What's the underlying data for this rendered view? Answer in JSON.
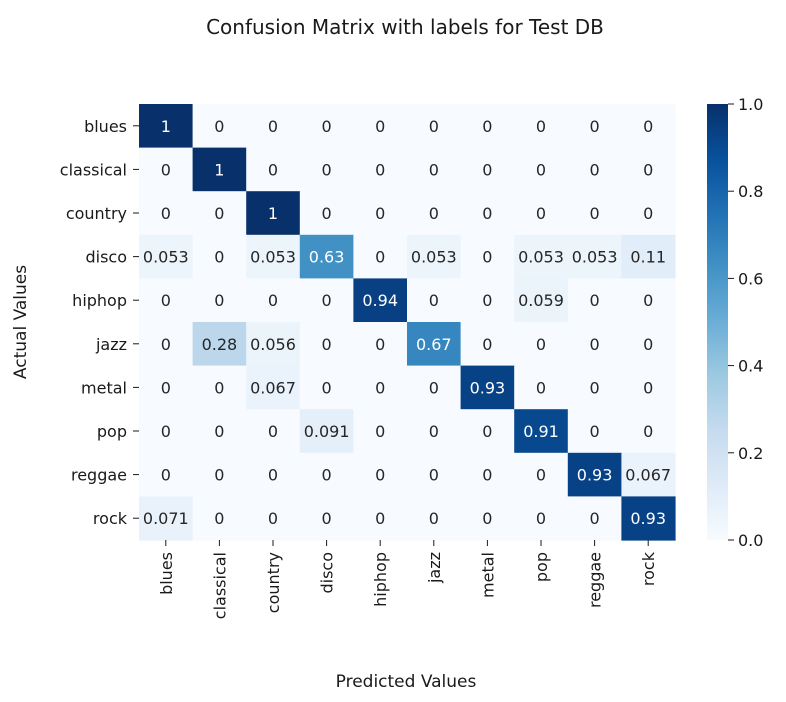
{
  "chart_data": {
    "type": "heatmap",
    "title": "Confusion Matrix with labels for Test DB",
    "xlabel": "Predicted Values",
    "ylabel": "Actual Values",
    "x_categories": [
      "blues",
      "classical",
      "country",
      "disco",
      "hiphop",
      "jazz",
      "metal",
      "pop",
      "reggae",
      "rock"
    ],
    "y_categories": [
      "blues",
      "classical",
      "country",
      "disco",
      "hiphop",
      "jazz",
      "metal",
      "pop",
      "reggae",
      "rock"
    ],
    "values": [
      [
        1,
        0,
        0,
        0,
        0,
        0,
        0,
        0,
        0,
        0
      ],
      [
        0,
        1,
        0,
        0,
        0,
        0,
        0,
        0,
        0,
        0
      ],
      [
        0,
        0,
        1,
        0,
        0,
        0,
        0,
        0,
        0,
        0
      ],
      [
        0.053,
        0,
        0.053,
        0.63,
        0,
        0.053,
        0,
        0.053,
        0.053,
        0.11
      ],
      [
        0,
        0,
        0,
        0,
        0.94,
        0,
        0,
        0.059,
        0,
        0
      ],
      [
        0,
        0.28,
        0.056,
        0,
        0,
        0.67,
        0,
        0,
        0,
        0
      ],
      [
        0,
        0,
        0.067,
        0,
        0,
        0,
        0.93,
        0,
        0,
        0
      ],
      [
        0,
        0,
        0,
        0.091,
        0,
        0,
        0,
        0.91,
        0,
        0
      ],
      [
        0,
        0,
        0,
        0,
        0,
        0,
        0,
        0,
        0.93,
        0.067
      ],
      [
        0.071,
        0,
        0,
        0,
        0,
        0,
        0,
        0,
        0,
        0.93
      ]
    ],
    "annotations": [
      [
        "1",
        "0",
        "0",
        "0",
        "0",
        "0",
        "0",
        "0",
        "0",
        "0"
      ],
      [
        "0",
        "1",
        "0",
        "0",
        "0",
        "0",
        "0",
        "0",
        "0",
        "0"
      ],
      [
        "0",
        "0",
        "1",
        "0",
        "0",
        "0",
        "0",
        "0",
        "0",
        "0"
      ],
      [
        "0.053",
        "0",
        "0.053",
        "0.63",
        "0",
        "0.053",
        "0",
        "0.053",
        "0.053",
        "0.11"
      ],
      [
        "0",
        "0",
        "0",
        "0",
        "0.94",
        "0",
        "0",
        "0.059",
        "0",
        "0"
      ],
      [
        "0",
        "0.28",
        "0.056",
        "0",
        "0",
        "0.67",
        "0",
        "0",
        "0",
        "0"
      ],
      [
        "0",
        "0",
        "0.067",
        "0",
        "0",
        "0",
        "0.93",
        "0",
        "0",
        "0"
      ],
      [
        "0",
        "0",
        "0",
        "0.091",
        "0",
        "0",
        "0",
        "0.91",
        "0",
        "0"
      ],
      [
        "0",
        "0",
        "0",
        "0",
        "0",
        "0",
        "0",
        "0",
        "0.93",
        "0.067"
      ],
      [
        "0.071",
        "0",
        "0",
        "0",
        "0",
        "0",
        "0",
        "0",
        "0",
        "0.93"
      ]
    ],
    "colormap": "Blues",
    "colormap_stops": [
      "#f7fbff",
      "#deebf7",
      "#c6dbef",
      "#9ecae1",
      "#6baed6",
      "#4292c6",
      "#2171b5",
      "#08519c",
      "#08306b"
    ],
    "colorbar": {
      "range": [
        0,
        1
      ],
      "ticks": [
        0,
        0.2,
        0.4,
        0.6,
        0.8,
        1
      ],
      "tick_labels": [
        "0.0",
        "0.2",
        "0.4",
        "0.6",
        "0.8",
        "1.0"
      ],
      "position": "right"
    }
  }
}
